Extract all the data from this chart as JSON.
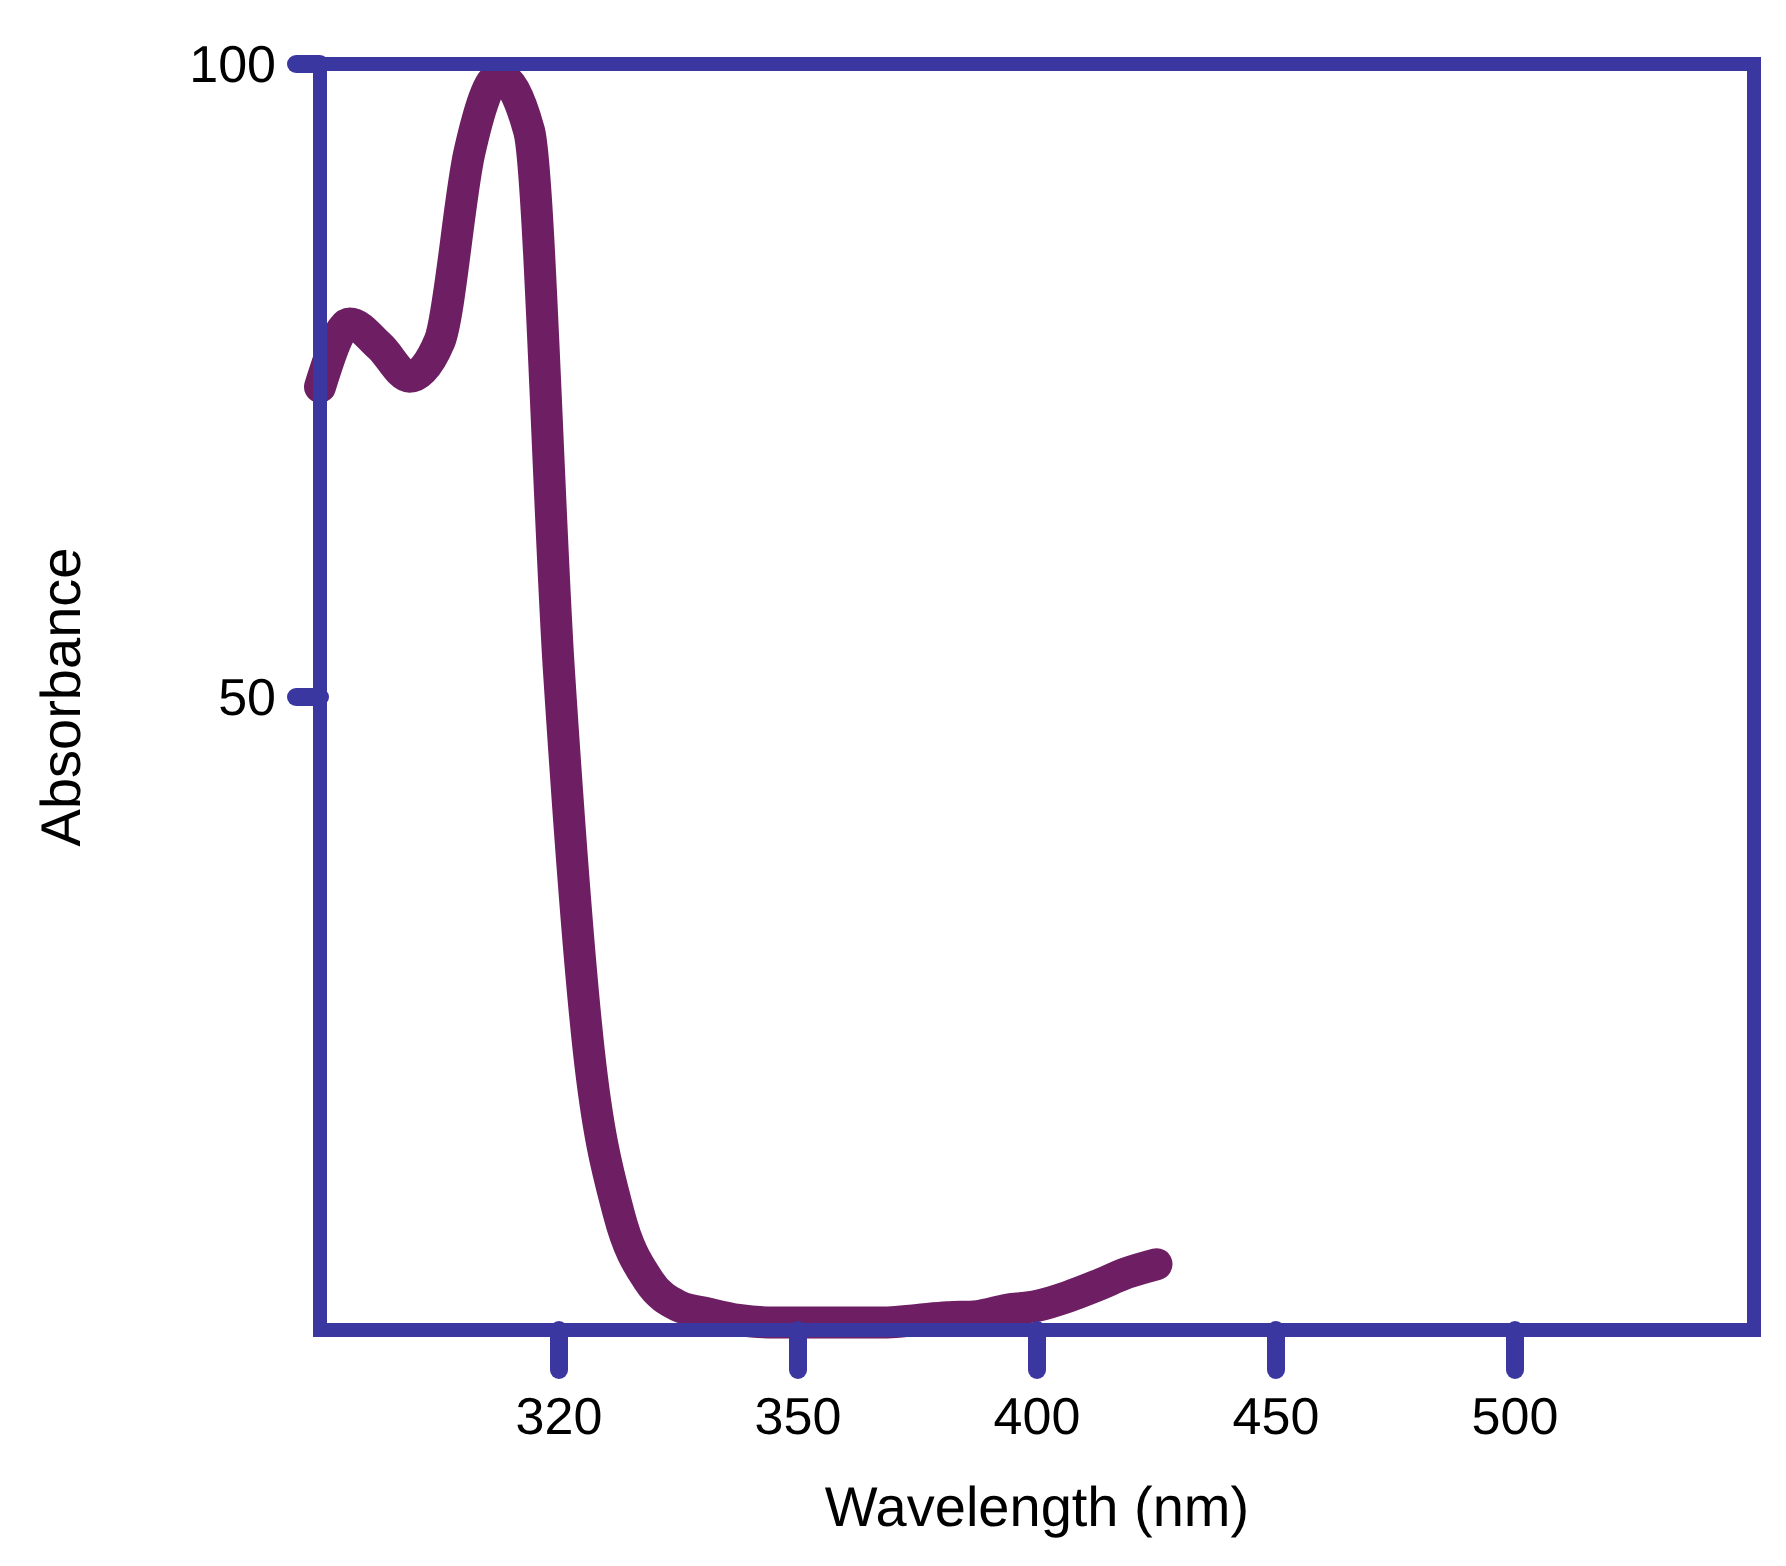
{
  "chart_data": {
    "type": "line",
    "xlabel": "Wavelength (nm)",
    "ylabel": "Absorbance",
    "categories": [
      null,
      null,
      null,
      null,
      null,
      null,
      null,
      null,
      "320",
      null,
      null,
      null,
      null,
      null,
      null,
      null,
      "350",
      null,
      null,
      null,
      null,
      null,
      null,
      null,
      "400",
      null,
      null,
      null,
      null,
      null,
      null,
      null,
      "450",
      null,
      null,
      null,
      null,
      null,
      null,
      null,
      "500",
      null,
      null,
      null,
      null,
      null,
      null,
      null,
      null
    ],
    "ylim": [
      0,
      100
    ],
    "yticks": [
      50,
      100
    ],
    "series": [
      {
        "color": "#6e1f63",
        "values": [
          74.5,
          79.5,
          77.7,
          75.3,
          78.1,
          93,
          99,
          94.7,
          52,
          22,
          9.2,
          3.9,
          1.9,
          1.3,
          0.8,
          0.6,
          0.6,
          0.6,
          0.6,
          0.6,
          0.8,
          1,
          1.1,
          1.6,
          1.9,
          2.6,
          3.5,
          4.5,
          5.2,
          null,
          null,
          null,
          null,
          null,
          null,
          null,
          null,
          null,
          null,
          null,
          null,
          null,
          null,
          null,
          null,
          null,
          null,
          null,
          null
        ]
      }
    ],
    "grid": false,
    "line_style": "solid"
  }
}
